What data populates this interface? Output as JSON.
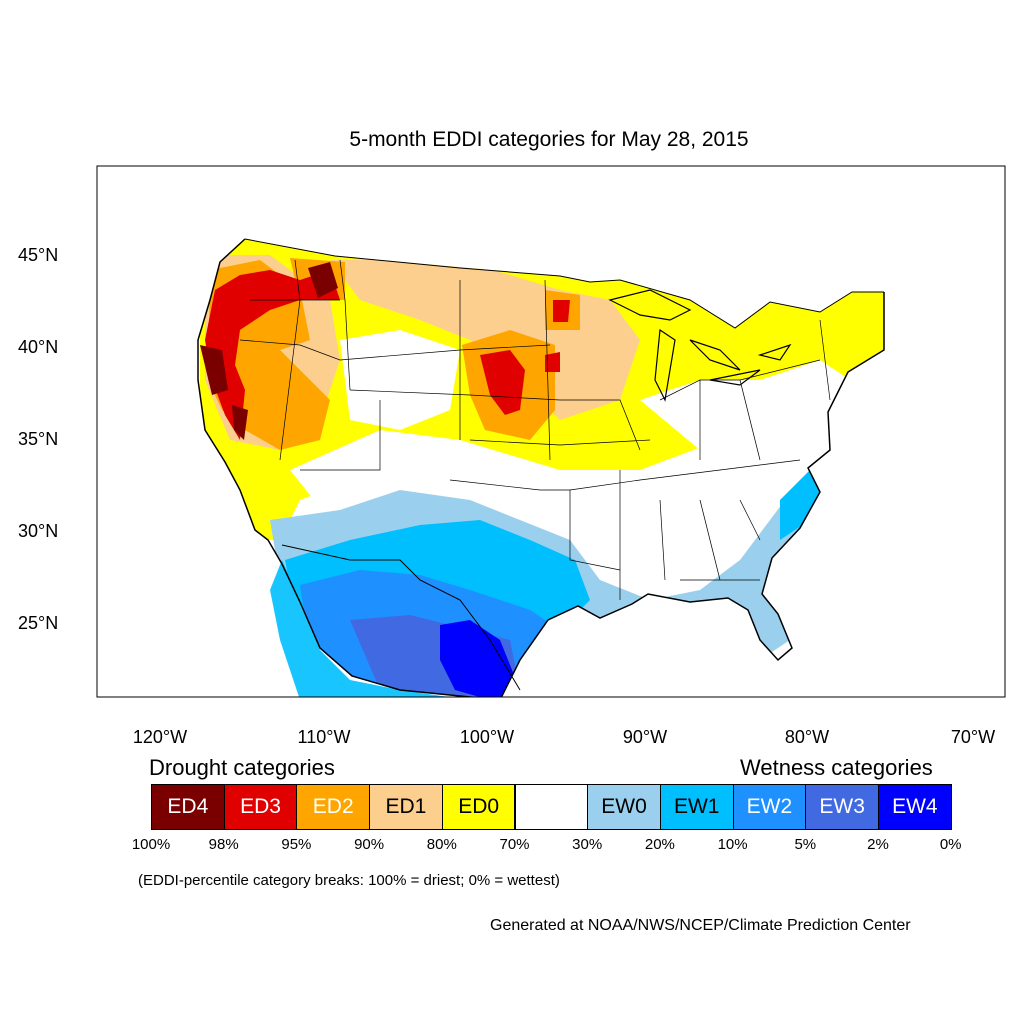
{
  "title": "5-month EDDI categories for May 28, 2015",
  "map": {
    "type": "choropleth",
    "region": "Contiguous United States",
    "lat_labels": [
      "45°N",
      "40°N",
      "35°N",
      "30°N",
      "25°N"
    ],
    "lon_labels": [
      "120°W",
      "110°W",
      "100°W",
      "90°W",
      "80°W",
      "70°W"
    ],
    "colors": {
      "ED4": "#7a0000",
      "ED3": "#e00000",
      "ED2": "#ffa500",
      "ED1": "#fccf8e",
      "ED0": "#ffff00",
      "NONE": "#ffffff",
      "EW0": "#9ad0ee",
      "EW1": "#00bfff",
      "EW2": "#1e90ff",
      "EW3": "#4169e1",
      "EW4": "#0000ff"
    }
  },
  "legend": {
    "drought_heading": "Drought categories",
    "wetness_heading": "Wetness categories",
    "categories": [
      {
        "label": "ED4",
        "color": "#7a0000"
      },
      {
        "label": "ED3",
        "color": "#e00000"
      },
      {
        "label": "ED2",
        "color": "#ffa500"
      },
      {
        "label": "ED1",
        "color": "#fccf8e"
      },
      {
        "label": "ED0",
        "color": "#ffff00"
      },
      {
        "label": "",
        "color": "#ffffff"
      },
      {
        "label": "EW0",
        "color": "#9ad0ee"
      },
      {
        "label": "EW1",
        "color": "#00bfff"
      },
      {
        "label": "EW2",
        "color": "#1e90ff"
      },
      {
        "label": "EW3",
        "color": "#4169e1"
      },
      {
        "label": "EW4",
        "color": "#0000ff"
      }
    ],
    "breaks": [
      "100%",
      "98%",
      "95%",
      "90%",
      "80%",
      "70%",
      "30%",
      "20%",
      "10%",
      "5%",
      "2%",
      "0%"
    ]
  },
  "note": "(EDDI-percentile category breaks: 100% = driest; 0% = wettest)",
  "credit": "Generated at NOAA/NWS/NCEP/Climate Prediction Center"
}
